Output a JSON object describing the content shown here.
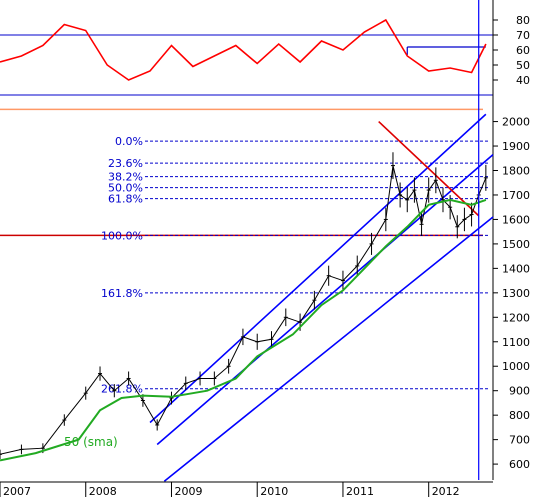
{
  "chart_data": [
    {
      "type": "line",
      "panel": "indicator",
      "description_scale": "oscillator 0-100",
      "ylim": [
        32,
        90
      ],
      "y_ticks": [
        40,
        50,
        60,
        70,
        80
      ],
      "reference_lines": [
        {
          "value": 70,
          "color": "#0000cc"
        },
        {
          "value": 30,
          "color": "#0000cc"
        }
      ],
      "horizontal_segments": [
        {
          "value": 62,
          "from": "2011-10",
          "to": "2012-09",
          "color": "#0000cc"
        }
      ],
      "series": [
        {
          "color": "#ff0000",
          "x": [
            "2007-01",
            "2007-04",
            "2007-07",
            "2007-10",
            "2008-01",
            "2008-04",
            "2008-07",
            "2008-10",
            "2009-01",
            "2009-04",
            "2009-07",
            "2009-10",
            "2010-01",
            "2010-04",
            "2010-07",
            "2010-10",
            "2011-01",
            "2011-04",
            "2011-07",
            "2011-10",
            "2012-01",
            "2012-04",
            "2012-07",
            "2012-09"
          ],
          "values": [
            52,
            56,
            63,
            77,
            73,
            50,
            40,
            46,
            63,
            49,
            56,
            63,
            51,
            64,
            52,
            66,
            60,
            72,
            80,
            56,
            46,
            48,
            45,
            64
          ]
        }
      ]
    },
    {
      "type": "line",
      "panel": "price",
      "ylim": [
        535,
        2080
      ],
      "y_ticks": [
        600,
        700,
        800,
        900,
        1000,
        1100,
        1200,
        1300,
        1400,
        1500,
        1600,
        1700,
        1800,
        1900,
        2000
      ],
      "x_tick_labels": [
        "2007",
        "2008",
        "2009",
        "2010",
        "2011",
        "2012"
      ],
      "x_range": [
        "2007-01",
        "2012-10"
      ],
      "series": [
        {
          "name": "price",
          "color": "#000000",
          "x": [
            "2007-01",
            "2007-04",
            "2007-07",
            "2007-10",
            "2008-01",
            "2008-03",
            "2008-05",
            "2008-07",
            "2008-09",
            "2008-11",
            "2009-01",
            "2009-03",
            "2009-05",
            "2009-07",
            "2009-09",
            "2009-11",
            "2010-01",
            "2010-03",
            "2010-05",
            "2010-07",
            "2010-09",
            "2010-11",
            "2011-01",
            "2011-03",
            "2011-05",
            "2011-07",
            "2011-08",
            "2011-09",
            "2011-10",
            "2011-11",
            "2011-12",
            "2012-01",
            "2012-02",
            "2012-03",
            "2012-04",
            "2012-05",
            "2012-06",
            "2012-07",
            "2012-08",
            "2012-09"
          ],
          "values": [
            640,
            660,
            665,
            780,
            890,
            970,
            900,
            950,
            860,
            760,
            870,
            930,
            950,
            950,
            1000,
            1120,
            1100,
            1110,
            1200,
            1180,
            1270,
            1370,
            1350,
            1410,
            1500,
            1600,
            1820,
            1700,
            1680,
            1720,
            1580,
            1720,
            1760,
            1680,
            1650,
            1570,
            1600,
            1620,
            1700,
            1770
          ]
        },
        {
          "name": "50 (sma)",
          "color": "#22aa22",
          "x": [
            "2007-01",
            "2007-06",
            "2007-12",
            "2008-03",
            "2008-06",
            "2008-09",
            "2009-01",
            "2009-06",
            "2009-10",
            "2010-01",
            "2010-06",
            "2010-10",
            "2011-01",
            "2011-04",
            "2011-07",
            "2011-10",
            "2012-01",
            "2012-04",
            "2012-07",
            "2012-09"
          ],
          "values": [
            615,
            645,
            700,
            820,
            870,
            880,
            875,
            900,
            950,
            1040,
            1130,
            1250,
            1310,
            1400,
            1490,
            1570,
            1660,
            1680,
            1660,
            1680
          ]
        }
      ],
      "fibonacci": [
        {
          "label": "0.0%",
          "value": 1920
        },
        {
          "label": "23.6%",
          "value": 1830
        },
        {
          "label": "38.2%",
          "value": 1775
        },
        {
          "label": "50.0%",
          "value": 1730
        },
        {
          "label": "61.8%",
          "value": 1685
        },
        {
          "label": "100.0%",
          "value": 1535
        },
        {
          "label": "161.8%",
          "value": 1300
        },
        {
          "label": "261.8%",
          "value": 908
        }
      ],
      "channel_lines": [
        {
          "from": [
            "2008-11",
            680
          ],
          "to": [
            "2012-10",
            1865
          ],
          "color": "#0000ff"
        },
        {
          "from": [
            "2008-10",
            770
          ],
          "to": [
            "2012-09",
            2030
          ],
          "color": "#0000ff"
        },
        {
          "from": [
            "2008-12",
            530
          ],
          "to": [
            "2012-10",
            1610
          ],
          "color": "#0000ff"
        }
      ],
      "downtrend_line": {
        "from": [
          "2011-06",
          2000
        ],
        "to": [
          "2012-08",
          1615
        ],
        "color": "#dd0000"
      },
      "horizontal_lines": [
        {
          "value": 1535,
          "color": "#cc0000"
        },
        {
          "value": 2050,
          "color": "#ff9966"
        }
      ],
      "vertical_marker": {
        "x": "2012-08",
        "color": "#0000ff"
      },
      "annotations": [
        "50 (sma)"
      ]
    }
  ]
}
